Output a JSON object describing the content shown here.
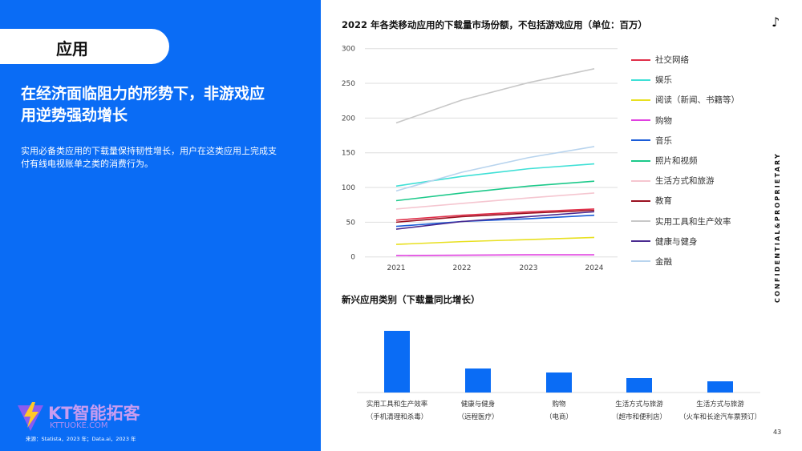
{
  "left": {
    "section": "应用",
    "headline": "在经济面临阻力的形势下，非游戏应用逆势强劲增长",
    "subtext": "实用必备类应用的下载量保持韧性增长，用户在这类应用上完成支付有线电视账单之类的消费行为。",
    "logo_text": "KT智能拓客",
    "logo_url": "KTTUOKE.COM",
    "source": "来源：Statista，2023 年；Data.ai，2023 年"
  },
  "side": {
    "confidential": "CONFIDENTIAL&PROPRIETARY",
    "page": "43",
    "brand_icon": "tiktok-icon"
  },
  "chart_data": [
    {
      "type": "line",
      "title": "2022 年各类移动应用的下载量市场份额，不包括游戏应用（单位：百万）",
      "x": [
        "2021",
        "2022",
        "2023",
        "2024"
      ],
      "ylim": [
        0,
        300
      ],
      "yticks": [
        "0",
        "50",
        "100",
        "150",
        "200",
        "250",
        "300"
      ],
      "grid": true,
      "legend": "right",
      "series": [
        {
          "name": "社交网络",
          "color": "#e0304a",
          "values": [
            53,
            60,
            65,
            69
          ]
        },
        {
          "name": "娱乐",
          "color": "#3fe0d6",
          "values": [
            102,
            116,
            127,
            134
          ]
        },
        {
          "name": "阅读（新闻、书籍等）",
          "color": "#e8e020",
          "values": [
            18,
            22,
            25,
            28
          ]
        },
        {
          "name": "购物",
          "color": "#e040e0",
          "values": [
            2,
            2.5,
            3,
            3
          ]
        },
        {
          "name": "音乐",
          "color": "#1a5cd8",
          "values": [
            44,
            51,
            55,
            60
          ]
        },
        {
          "name": "照片和视频",
          "color": "#1cc98a",
          "values": [
            81,
            92,
            102,
            109
          ]
        },
        {
          "name": "生活方式和旅游",
          "color": "#f5c6d0",
          "values": [
            69,
            77,
            85,
            92
          ]
        },
        {
          "name": "教育",
          "color": "#9a1020",
          "values": [
            50,
            58,
            63,
            67
          ]
        },
        {
          "name": "实用工具和生产效率",
          "color": "#c8c8c8",
          "values": [
            193,
            226,
            251,
            271
          ]
        },
        {
          "name": "健康与健身",
          "color": "#4a2a90",
          "values": [
            40,
            51,
            58,
            65
          ]
        },
        {
          "name": "金融",
          "color": "#b8d4ee",
          "values": [
            95,
            122,
            143,
            159
          ]
        }
      ]
    },
    {
      "type": "bar",
      "title": "新兴应用类别（下载量同比增长）",
      "color": "#0a6cf5",
      "categories": [
        [
          "实用工具和生产效率",
          "（手机清理和杀毒）"
        ],
        [
          "健康与健身",
          "（远程医疗）"
        ],
        [
          "购物",
          "（电商）"
        ],
        [
          "生活方式与旅游",
          "（超市和便利店）"
        ],
        [
          "生活方式与旅游",
          "（火车和长途汽车票预订）"
        ]
      ],
      "values": [
        77,
        30,
        25,
        18,
        14
      ]
    }
  ]
}
